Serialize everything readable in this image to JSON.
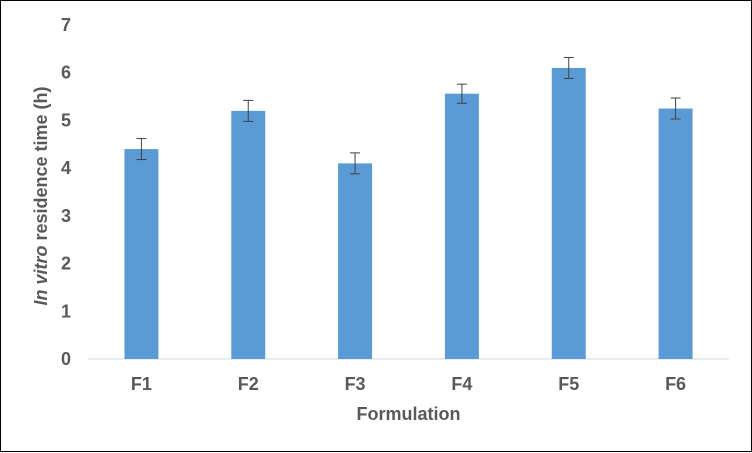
{
  "chart_data": {
    "type": "bar",
    "title": "",
    "categories": [
      "F1",
      "F2",
      "F3",
      "F4",
      "F5",
      "F6"
    ],
    "values": [
      4.4,
      5.2,
      4.1,
      5.56,
      6.1,
      5.25
    ],
    "error": [
      0.22,
      0.22,
      0.22,
      0.2,
      0.22,
      0.22
    ],
    "xlabel": "Formulation",
    "ylabel_italic": "In vitro",
    "ylabel_rest": " residence time (h)",
    "ylim": [
      0,
      7
    ],
    "yticks": [
      "0",
      "1",
      "2",
      "3",
      "4",
      "5",
      "6",
      "7"
    ],
    "grid": false,
    "legend": "none",
    "bar_color": "#5B9BD5"
  }
}
